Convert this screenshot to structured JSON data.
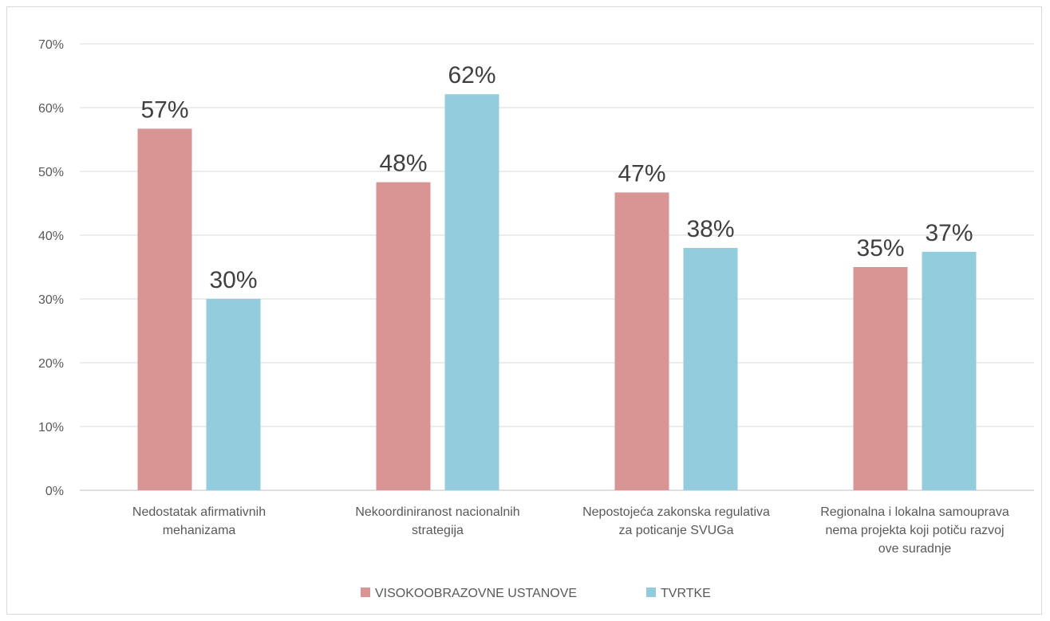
{
  "chart_data": {
    "type": "bar",
    "categories": [
      [
        "Nedostatak afirmativnih",
        "mehanizama"
      ],
      [
        "Nekoordiniranost nacionalnih",
        "strategija"
      ],
      [
        "Nepostojeća zakonska regulativa",
        "za poticanje SVUGa"
      ],
      [
        "Regionalna i lokalna samouprava",
        "nema projekta koji potiču razvoj",
        "ove suradnje"
      ]
    ],
    "series": [
      {
        "name": "VISOKOOBRAZOVNE USTANOVE",
        "color": "#d99594",
        "values": [
          0.567,
          0.483,
          0.467,
          0.35
        ],
        "labels": [
          "57%",
          "48%",
          "47%",
          "35%"
        ]
      },
      {
        "name": "TVRTKE",
        "color": "#93cddd",
        "values": [
          0.3,
          0.621,
          0.38,
          0.374
        ],
        "labels": [
          "30%",
          "62%",
          "38%",
          "37%"
        ]
      }
    ],
    "yticks": [
      "0%",
      "10%",
      "20%",
      "30%",
      "40%",
      "50%",
      "60%",
      "70%"
    ],
    "ylim": [
      0,
      0.7
    ],
    "grid": true,
    "legend": "bottom"
  }
}
